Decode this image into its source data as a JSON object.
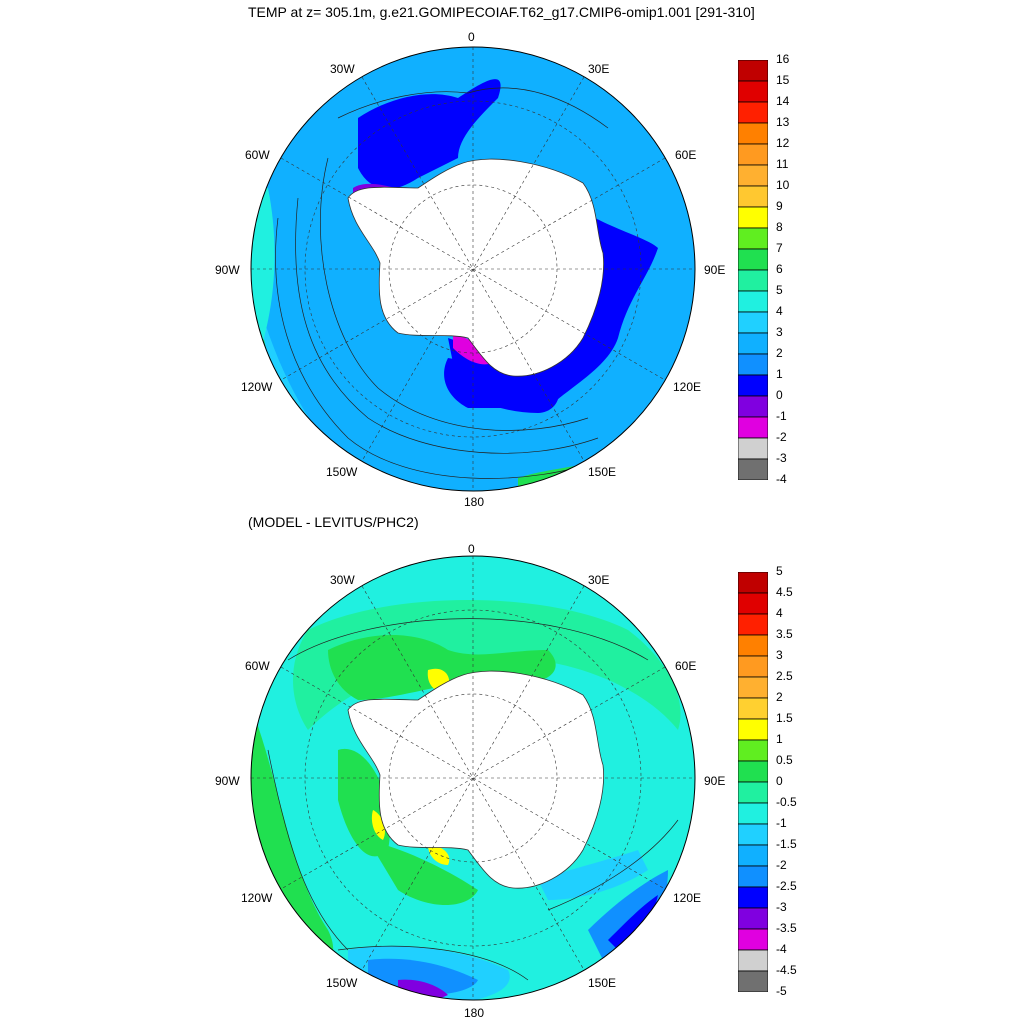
{
  "main_title": "TEMP at z= 305.1m, g.e21.GOMIPECOIAF.T62_g17.CMIP6-omip1.001 [291-310]",
  "diff_title": "(MODEL - LEVITUS/PHC2)",
  "lon_labels": [
    "0",
    "30E",
    "60E",
    "90E",
    "120E",
    "150E",
    "180",
    "150W",
    "120W",
    "90W",
    "60W",
    "30W"
  ],
  "top_colorbar": {
    "labels": [
      "16",
      "15",
      "14",
      "13",
      "12",
      "11",
      "10",
      "9",
      "8",
      "7",
      "6",
      "5",
      "4",
      "3",
      "2",
      "1",
      "0",
      "-1",
      "-2",
      "-3",
      "-4"
    ],
    "colors": [
      "#c00000",
      "#e00000",
      "#ff2000",
      "#ff8000",
      "#ff9a20",
      "#ffb030",
      "#ffc830",
      "#ffff00",
      "#60ee20",
      "#20e050",
      "#20f0a0",
      "#20f0e0",
      "#20d0ff",
      "#10b0ff",
      "#1090ff",
      "#0000ff",
      "#8000e0",
      "#e000e0",
      "#d0d0d0",
      "#707070"
    ]
  },
  "bottom_colorbar": {
    "labels": [
      "5",
      "4.5",
      "4",
      "3.5",
      "3",
      "2.5",
      "2",
      "1.5",
      "1",
      "0.5",
      "0",
      "-0.5",
      "-1",
      "-1.5",
      "-2",
      "-2.5",
      "-3",
      "-3.5",
      "-4",
      "-4.5",
      "-5"
    ],
    "colors": [
      "#c00000",
      "#e00000",
      "#ff2000",
      "#ff8000",
      "#ff9a20",
      "#ffb030",
      "#ffd030",
      "#ffff00",
      "#60ee20",
      "#20e050",
      "#20f0a0",
      "#20f0e0",
      "#20d0ff",
      "#10b0ff",
      "#1090ff",
      "#0000ff",
      "#8000e0",
      "#e000e0",
      "#d0d0d0",
      "#707070"
    ]
  }
}
